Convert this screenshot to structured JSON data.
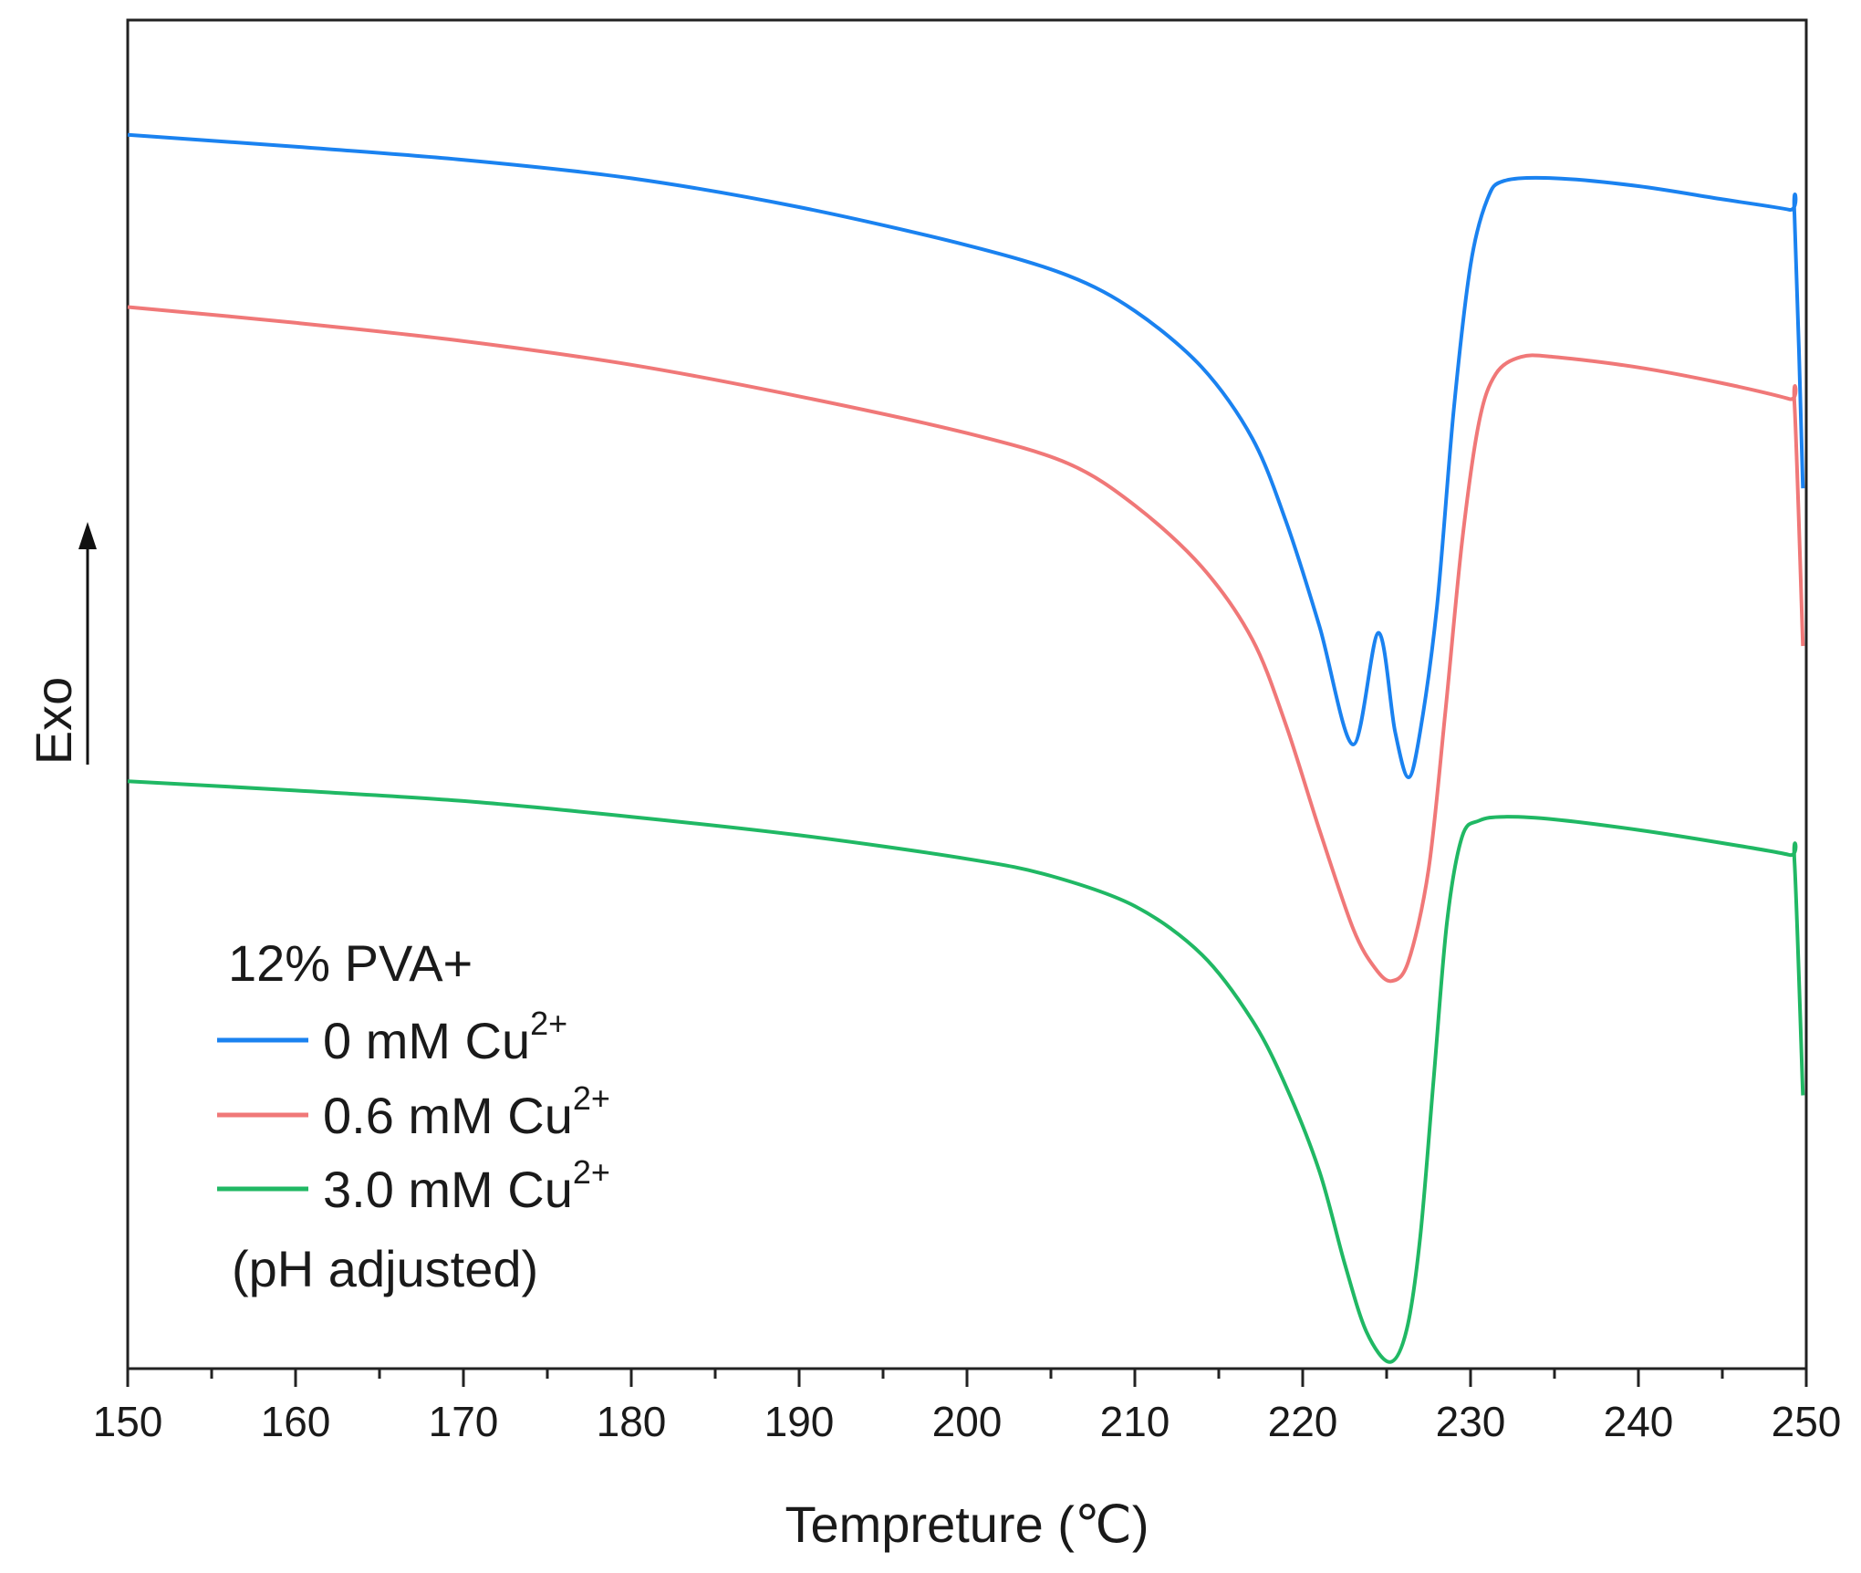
{
  "chart_data": {
    "type": "line",
    "title": "",
    "xlabel": "Tempreture (℃)",
    "ylabel": "Exo",
    "xlim": [
      150,
      250
    ],
    "ylim": [
      0,
      100
    ],
    "x_ticks": [
      150,
      160,
      170,
      180,
      190,
      200,
      210,
      220,
      230,
      240,
      250
    ],
    "x_tick_labels": [
      "150",
      "160",
      "170",
      "180",
      "190",
      "200",
      "210",
      "220",
      "230",
      "240",
      "250"
    ],
    "y_ticks_shown": false,
    "legend": {
      "position": "bottom-left",
      "header": "12% PVA+",
      "footer": "(pH adjusted)"
    },
    "series": [
      {
        "name": "0 mM Cu2+",
        "label_main": "0 mM Cu",
        "label_sup": "2+",
        "color": "#1a82f0",
        "points": [
          [
            150,
            93.9
          ],
          [
            160,
            93
          ],
          [
            170,
            92
          ],
          [
            180,
            90.6
          ],
          [
            190,
            88.4
          ],
          [
            200,
            85.5
          ],
          [
            206,
            83.2
          ],
          [
            210,
            80.5
          ],
          [
            214,
            76.2
          ],
          [
            217,
            70.8
          ],
          [
            219,
            64.5
          ],
          [
            221,
            56.5
          ],
          [
            223,
            47.5
          ],
          [
            224.5,
            56
          ],
          [
            225.5,
            48.5
          ],
          [
            226.3,
            45
          ],
          [
            227,
            48.5
          ],
          [
            228,
            58
          ],
          [
            229,
            73
          ],
          [
            230,
            84
          ],
          [
            231,
            89
          ],
          [
            232,
            90.4
          ],
          [
            235,
            90.6
          ],
          [
            240,
            90
          ],
          [
            245,
            89
          ],
          [
            249,
            88.2
          ],
          [
            249.3,
            87.8
          ],
          [
            249.8,
            67
          ]
        ]
      },
      {
        "name": "0.6 mM Cu2+",
        "label_main": "0.6 mM Cu",
        "label_sup": "2+",
        "color": "#f07878",
        "points": [
          [
            150,
            80.8
          ],
          [
            160,
            79.6
          ],
          [
            170,
            78.2
          ],
          [
            180,
            76.4
          ],
          [
            190,
            74
          ],
          [
            200,
            71.2
          ],
          [
            206,
            68.9
          ],
          [
            210,
            65.7
          ],
          [
            214,
            61
          ],
          [
            217,
            55.5
          ],
          [
            219,
            49
          ],
          [
            221,
            41
          ],
          [
            223,
            33.5
          ],
          [
            224.3,
            30.5
          ],
          [
            225.3,
            29.5
          ],
          [
            226.3,
            31
          ],
          [
            227.5,
            38
          ],
          [
            228.5,
            50
          ],
          [
            229.5,
            63
          ],
          [
            230.5,
            72
          ],
          [
            231.5,
            75.7
          ],
          [
            233,
            77
          ],
          [
            235,
            77
          ],
          [
            240,
            76.2
          ],
          [
            245,
            75
          ],
          [
            249,
            73.8
          ],
          [
            249.3,
            73.4
          ],
          [
            249.8,
            55
          ]
        ]
      },
      {
        "name": "3.0 mM Cu2+",
        "label_main": "3.0 mM Cu",
        "label_sup": "2+",
        "color": "#20b864",
        "points": [
          [
            150,
            44.7
          ],
          [
            160,
            44
          ],
          [
            170,
            43.2
          ],
          [
            180,
            42
          ],
          [
            190,
            40.6
          ],
          [
            200,
            38.8
          ],
          [
            205,
            37.5
          ],
          [
            210,
            35.2
          ],
          [
            214,
            31.5
          ],
          [
            217,
            26.5
          ],
          [
            219,
            21.5
          ],
          [
            221,
            15
          ],
          [
            222.5,
            8
          ],
          [
            223.8,
            2.8
          ],
          [
            225.2,
            0.5
          ],
          [
            226.2,
            3
          ],
          [
            227,
            10
          ],
          [
            227.8,
            22
          ],
          [
            228.6,
            34
          ],
          [
            229.5,
            40.5
          ],
          [
            230.5,
            41.7
          ],
          [
            232,
            42
          ],
          [
            235,
            41.8
          ],
          [
            240,
            41
          ],
          [
            245,
            40
          ],
          [
            249,
            39.1
          ],
          [
            249.3,
            38.6
          ],
          [
            249.8,
            20.8
          ]
        ]
      }
    ]
  }
}
